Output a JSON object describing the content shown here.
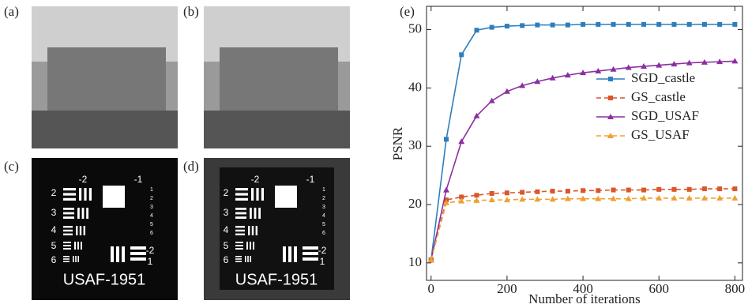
{
  "panels": {
    "labels": [
      "(a)",
      "(b)",
      "(c)",
      "(d)"
    ]
  },
  "usaf": {
    "labels": [
      "-2",
      "-1",
      "2",
      "3",
      "4",
      "5",
      "6",
      "1",
      "2",
      "3",
      "4",
      "5",
      "6",
      "-2",
      "1",
      "USAF-1951"
    ]
  },
  "chart_data": {
    "type": "line",
    "title": "(e)",
    "x_label": "Number of iterations",
    "y_label": "PSNR",
    "x": [
      0,
      40,
      80,
      120,
      160,
      200,
      240,
      280,
      320,
      360,
      400,
      440,
      480,
      520,
      560,
      600,
      640,
      680,
      720,
      760,
      800
    ],
    "series": [
      {
        "name": "SGD_castle",
        "color": "#2e7ebc",
        "marker": "square",
        "dash": false,
        "values": [
          10.5,
          31.2,
          45.7,
          49.9,
          50.4,
          50.6,
          50.7,
          50.8,
          50.8,
          50.8,
          50.9,
          50.9,
          50.9,
          50.9,
          50.9,
          50.9,
          50.9,
          50.9,
          50.9,
          50.9,
          50.9
        ]
      },
      {
        "name": "GS_castle",
        "color": "#d9572b",
        "marker": "square",
        "dash": true,
        "values": [
          10.5,
          20.8,
          21.3,
          21.6,
          21.9,
          22.0,
          22.1,
          22.2,
          22.3,
          22.3,
          22.4,
          22.4,
          22.5,
          22.5,
          22.5,
          22.6,
          22.6,
          22.6,
          22.7,
          22.7,
          22.7
        ]
      },
      {
        "name": "SGD_USAF",
        "color": "#8b2fa0",
        "marker": "triangle",
        "dash": false,
        "values": [
          10.5,
          22.5,
          30.8,
          35.2,
          37.8,
          39.4,
          40.4,
          41.1,
          41.7,
          42.2,
          42.6,
          42.9,
          43.2,
          43.5,
          43.7,
          43.9,
          44.1,
          44.3,
          44.4,
          44.5,
          44.6
        ]
      },
      {
        "name": "GS_USAF",
        "color": "#f0a030",
        "marker": "triangle",
        "dash": true,
        "values": [
          10.5,
          20.3,
          20.6,
          20.7,
          20.8,
          20.8,
          20.9,
          20.9,
          20.9,
          21.0,
          21.0,
          21.0,
          21.0,
          21.0,
          21.1,
          21.1,
          21.1,
          21.1,
          21.1,
          21.1,
          21.1
        ]
      }
    ],
    "xlim": [
      -12,
      820
    ],
    "ylim": [
      7,
      54
    ],
    "xticks": [
      0,
      200,
      400,
      600,
      800
    ],
    "yticks": [
      10,
      20,
      30,
      40,
      50
    ],
    "legend": "right"
  }
}
